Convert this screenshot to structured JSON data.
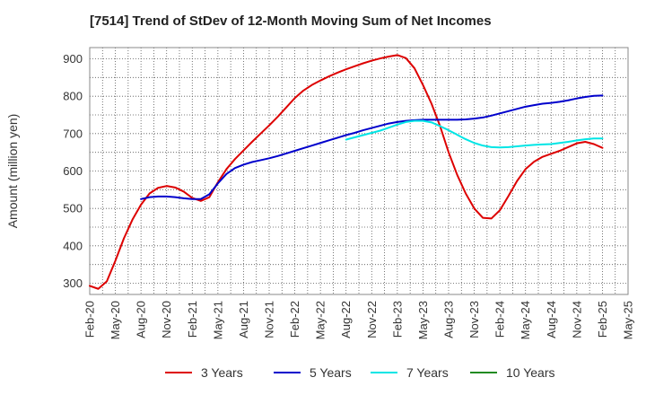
{
  "chart_data": {
    "type": "line",
    "title": "[7514]  Trend of StDev of 12-Month Moving Sum of Net Incomes",
    "xlabel": "",
    "ylabel": "Amount (million yen)",
    "ylim": [
      270,
      930
    ],
    "yticks": [
      300,
      400,
      500,
      600,
      700,
      800,
      900
    ],
    "xlim": [
      "2020-02",
      "2025-05"
    ],
    "xticks": [
      "Feb-20",
      "May-20",
      "Aug-20",
      "Nov-20",
      "Feb-21",
      "May-21",
      "Aug-21",
      "Nov-21",
      "Feb-22",
      "May-22",
      "Aug-22",
      "Nov-22",
      "Feb-23",
      "May-23",
      "Aug-23",
      "Nov-23",
      "Feb-24",
      "May-24",
      "Aug-24",
      "Nov-24",
      "Feb-25",
      "May-25"
    ],
    "grid": true,
    "legend_position": "bottom",
    "series": [
      {
        "name": "3 Years",
        "color": "#dd0000",
        "points": [
          [
            "2020-02",
            293
          ],
          [
            "2020-03",
            285
          ],
          [
            "2020-04",
            305
          ],
          [
            "2020-05",
            360
          ],
          [
            "2020-06",
            420
          ],
          [
            "2020-07",
            470
          ],
          [
            "2020-08",
            510
          ],
          [
            "2020-09",
            540
          ],
          [
            "2020-10",
            555
          ],
          [
            "2020-11",
            560
          ],
          [
            "2020-12",
            556
          ],
          [
            "2021-01",
            545
          ],
          [
            "2021-02",
            528
          ],
          [
            "2021-03",
            520
          ],
          [
            "2021-04",
            530
          ],
          [
            "2021-05",
            570
          ],
          [
            "2021-06",
            605
          ],
          [
            "2021-07",
            632
          ],
          [
            "2021-08",
            655
          ],
          [
            "2021-09",
            678
          ],
          [
            "2021-10",
            700
          ],
          [
            "2021-11",
            722
          ],
          [
            "2021-12",
            745
          ],
          [
            "2022-01",
            770
          ],
          [
            "2022-02",
            795
          ],
          [
            "2022-03",
            815
          ],
          [
            "2022-04",
            830
          ],
          [
            "2022-05",
            842
          ],
          [
            "2022-06",
            853
          ],
          [
            "2022-07",
            863
          ],
          [
            "2022-08",
            872
          ],
          [
            "2022-09",
            880
          ],
          [
            "2022-10",
            888
          ],
          [
            "2022-11",
            895
          ],
          [
            "2022-12",
            901
          ],
          [
            "2023-01",
            906
          ],
          [
            "2023-02",
            910
          ],
          [
            "2023-03",
            902
          ],
          [
            "2023-04",
            875
          ],
          [
            "2023-05",
            830
          ],
          [
            "2023-06",
            780
          ],
          [
            "2023-07",
            720
          ],
          [
            "2023-08",
            650
          ],
          [
            "2023-09",
            590
          ],
          [
            "2023-10",
            540
          ],
          [
            "2023-11",
            500
          ],
          [
            "2023-12",
            475
          ],
          [
            "2024-01",
            473
          ],
          [
            "2024-02",
            495
          ],
          [
            "2024-03",
            533
          ],
          [
            "2024-04",
            573
          ],
          [
            "2024-05",
            605
          ],
          [
            "2024-06",
            625
          ],
          [
            "2024-07",
            638
          ],
          [
            "2024-08",
            646
          ],
          [
            "2024-09",
            654
          ],
          [
            "2024-10",
            664
          ],
          [
            "2024-11",
            674
          ],
          [
            "2024-12",
            678
          ],
          [
            "2025-01",
            672
          ],
          [
            "2025-02",
            662
          ]
        ]
      },
      {
        "name": "5 Years",
        "color": "#0000cc",
        "points": [
          [
            "2020-08",
            525
          ],
          [
            "2020-09",
            530
          ],
          [
            "2020-10",
            532
          ],
          [
            "2020-11",
            532
          ],
          [
            "2020-12",
            530
          ],
          [
            "2021-01",
            527
          ],
          [
            "2021-02",
            525
          ],
          [
            "2021-03",
            525
          ],
          [
            "2021-04",
            538
          ],
          [
            "2021-05",
            567
          ],
          [
            "2021-06",
            592
          ],
          [
            "2021-07",
            608
          ],
          [
            "2021-08",
            617
          ],
          [
            "2021-09",
            624
          ],
          [
            "2021-10",
            629
          ],
          [
            "2021-11",
            634
          ],
          [
            "2021-12",
            640
          ],
          [
            "2022-01",
            647
          ],
          [
            "2022-02",
            654
          ],
          [
            "2022-03",
            661
          ],
          [
            "2022-04",
            668
          ],
          [
            "2022-05",
            675
          ],
          [
            "2022-06",
            682
          ],
          [
            "2022-07",
            689
          ],
          [
            "2022-08",
            696
          ],
          [
            "2022-09",
            702
          ],
          [
            "2022-10",
            709
          ],
          [
            "2022-11",
            715
          ],
          [
            "2022-12",
            721
          ],
          [
            "2023-01",
            727
          ],
          [
            "2023-02",
            731
          ],
          [
            "2023-03",
            734
          ],
          [
            "2023-04",
            736
          ],
          [
            "2023-05",
            737
          ],
          [
            "2023-06",
            737
          ],
          [
            "2023-07",
            737
          ],
          [
            "2023-08",
            737
          ],
          [
            "2023-09",
            737
          ],
          [
            "2023-10",
            738
          ],
          [
            "2023-11",
            740
          ],
          [
            "2023-12",
            743
          ],
          [
            "2024-01",
            748
          ],
          [
            "2024-02",
            754
          ],
          [
            "2024-03",
            760
          ],
          [
            "2024-04",
            766
          ],
          [
            "2024-05",
            772
          ],
          [
            "2024-06",
            776
          ],
          [
            "2024-07",
            780
          ],
          [
            "2024-08",
            782
          ],
          [
            "2024-09",
            785
          ],
          [
            "2024-10",
            789
          ],
          [
            "2024-11",
            794
          ],
          [
            "2024-12",
            798
          ],
          [
            "2025-01",
            801
          ],
          [
            "2025-02",
            802
          ]
        ]
      },
      {
        "name": "7 Years",
        "color": "#00e5e5",
        "points": [
          [
            "2022-08",
            684
          ],
          [
            "2022-09",
            690
          ],
          [
            "2022-10",
            696
          ],
          [
            "2022-11",
            702
          ],
          [
            "2022-12",
            708
          ],
          [
            "2023-01",
            716
          ],
          [
            "2023-02",
            724
          ],
          [
            "2023-03",
            731
          ],
          [
            "2023-04",
            734
          ],
          [
            "2023-05",
            734
          ],
          [
            "2023-06",
            730
          ],
          [
            "2023-07",
            720
          ],
          [
            "2023-08",
            709
          ],
          [
            "2023-09",
            697
          ],
          [
            "2023-10",
            685
          ],
          [
            "2023-11",
            675
          ],
          [
            "2023-12",
            668
          ],
          [
            "2024-01",
            664
          ],
          [
            "2024-02",
            663
          ],
          [
            "2024-03",
            664
          ],
          [
            "2024-04",
            666
          ],
          [
            "2024-05",
            668
          ],
          [
            "2024-06",
            670
          ],
          [
            "2024-07",
            671
          ],
          [
            "2024-08",
            672
          ],
          [
            "2024-09",
            675
          ],
          [
            "2024-10",
            678
          ],
          [
            "2024-11",
            682
          ],
          [
            "2024-12",
            685
          ],
          [
            "2025-01",
            687
          ],
          [
            "2025-02",
            687
          ]
        ]
      },
      {
        "name": "10 Years",
        "color": "#228b22",
        "points": []
      }
    ]
  }
}
